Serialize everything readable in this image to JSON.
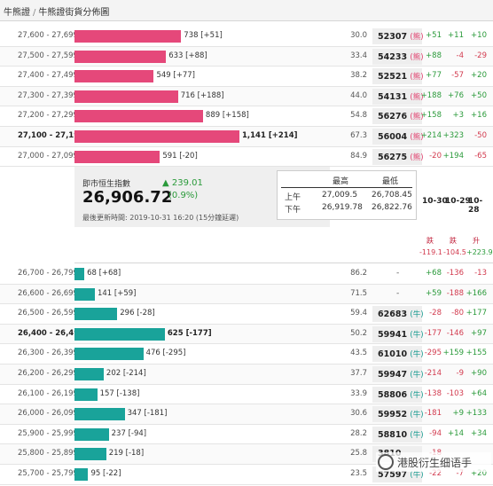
{
  "breadcrumb": {
    "root": "牛熊證",
    "separator": "/",
    "current": "牛熊證街貨分佈圖"
  },
  "colors": {
    "bull_bar": "#e5487a",
    "bear_bar": "#19a39a",
    "up": "#2a9a3a",
    "down": "#d23a4e",
    "bull_tag": "#e13c6b",
    "bear_tag": "#149a8f"
  },
  "bear_rows": [
    {
      "range": "27,600 - 27,699",
      "value": 738,
      "delta": "[+51]",
      "pct": "30.0",
      "level": "52307",
      "tag": "(熊)",
      "changes": [
        "+51",
        "+11",
        "+10"
      ]
    },
    {
      "range": "27,500 - 27,599",
      "value": 633,
      "delta": "[+88]",
      "pct": "33.4",
      "level": "54233",
      "tag": "(熊)",
      "changes": [
        "+88",
        "-4",
        "-29"
      ]
    },
    {
      "range": "27,400 - 27,499",
      "value": 549,
      "delta": "[+77]",
      "pct": "38.2",
      "level": "52521",
      "tag": "(熊)",
      "changes": [
        "+77",
        "-57",
        "+20"
      ]
    },
    {
      "range": "27,300 - 27,399",
      "value": 716,
      "delta": "[+188]",
      "pct": "44.0",
      "level": "54131",
      "tag": "(熊)",
      "changes": [
        "+188",
        "+76",
        "+50"
      ]
    },
    {
      "range": "27,200 - 27,299",
      "value": 889,
      "delta": "[+158]",
      "pct": "54.8",
      "level": "56276",
      "tag": "(熊)",
      "changes": [
        "+158",
        "+3",
        "+16"
      ]
    },
    {
      "range": "27,100 - 27,199",
      "value": "1,141",
      "delta": "[+214]",
      "pct": "67.3",
      "level": "56004",
      "tag": "(熊)",
      "changes": [
        "+214",
        "+323",
        "-50"
      ],
      "bold": true
    },
    {
      "range": "27,000 - 27,099",
      "value": 591,
      "delta": "[-20]",
      "pct": "84.9",
      "level": "56275",
      "tag": "(熊)",
      "changes": [
        "-20",
        "+194",
        "-65"
      ]
    }
  ],
  "index_panel": {
    "label": "即市恒生指數",
    "value": "26,906.72",
    "change_arrow": "▲",
    "change": "239.01",
    "change_pct": "(0.9%)",
    "updated": "最後更新時間: 2019-10-31 16:20 (15分鐘延遲)",
    "high_label": "最高",
    "low_label": "最低",
    "am_label": "上午",
    "pm_label": "下午",
    "am_high": "27,009.5",
    "am_low": "26,708.45",
    "pm_high": "26,919.78",
    "pm_low": "26,822.76"
  },
  "daily_summary": {
    "dates": [
      "10-30",
      "10-29",
      "10-28"
    ],
    "signals": [
      "跌",
      "跌",
      "升"
    ],
    "values": [
      "-119.1",
      "-104.5",
      "+223.9"
    ]
  },
  "bull_rows": [
    {
      "range": "26,700 - 26,799",
      "value": 68,
      "delta": "[+68]",
      "pct": "86.2",
      "level": "-",
      "tag": "",
      "changes": [
        "+68",
        "-136",
        "-13"
      ]
    },
    {
      "range": "26,600 - 26,699",
      "value": 141,
      "delta": "[+59]",
      "pct": "71.5",
      "level": "-",
      "tag": "",
      "changes": [
        "+59",
        "-188",
        "+166"
      ]
    },
    {
      "range": "26,500 - 26,599",
      "value": 296,
      "delta": "[-28]",
      "pct": "59.4",
      "level": "62683",
      "tag": "(牛)",
      "changes": [
        "-28",
        "-80",
        "+177"
      ]
    },
    {
      "range": "26,400 - 26,499",
      "value": 625,
      "delta": "[-177]",
      "pct": "50.2",
      "level": "59941",
      "tag": "(牛)",
      "changes": [
        "-177",
        "-146",
        "+97"
      ],
      "bold": true
    },
    {
      "range": "26,300 - 26,399",
      "value": 476,
      "delta": "[-295]",
      "pct": "43.5",
      "level": "61010",
      "tag": "(牛)",
      "changes": [
        "-295",
        "+159",
        "+155"
      ]
    },
    {
      "range": "26,200 - 26,299",
      "value": 202,
      "delta": "[-214]",
      "pct": "37.7",
      "level": "59947",
      "tag": "(牛)",
      "changes": [
        "-214",
        "-9",
        "+90"
      ]
    },
    {
      "range": "26,100 - 26,199",
      "value": 157,
      "delta": "[-138]",
      "pct": "33.9",
      "level": "58806",
      "tag": "(牛)",
      "changes": [
        "-138",
        "-103",
        "+64"
      ]
    },
    {
      "range": "26,000 - 26,099",
      "value": 347,
      "delta": "[-181]",
      "pct": "30.6",
      "level": "59952",
      "tag": "(牛)",
      "changes": [
        "-181",
        "+9",
        "+133"
      ]
    },
    {
      "range": "25,900 - 25,999",
      "value": 237,
      "delta": "[-94]",
      "pct": "28.2",
      "level": "58810",
      "tag": "(牛)",
      "changes": [
        "-94",
        "+14",
        "+34"
      ]
    },
    {
      "range": "25,800 - 25,899",
      "value": 219,
      "delta": "[-18]",
      "pct": "25.8",
      "level": "3810",
      "tag": "",
      "changes": [
        "-18",
        "",
        ""
      ]
    },
    {
      "range": "25,700 - 25,799",
      "value": 95,
      "delta": "[-22]",
      "pct": "23.5",
      "level": "57597",
      "tag": "(牛)",
      "changes": [
        "-22",
        "-7",
        "+20"
      ]
    }
  ],
  "watermark": {
    "text": "港股衍生细语手"
  }
}
